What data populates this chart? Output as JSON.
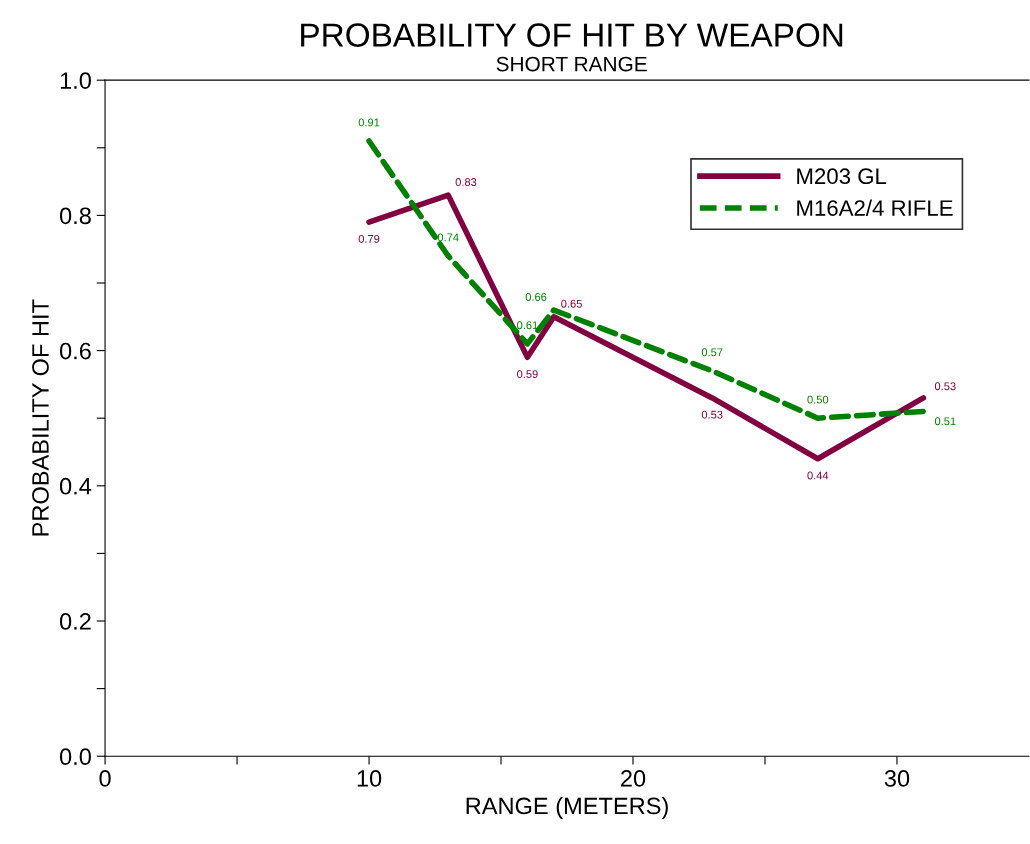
{
  "chart_data": {
    "type": "line",
    "title": "PROBABILITY OF HIT BY WEAPON",
    "subtitle": "SHORT RANGE",
    "xlabel": "RANGE (METERS)",
    "ylabel": "PROBABILITY OF HIT",
    "x": [
      10,
      13,
      16,
      17,
      23,
      27,
      31
    ],
    "series": [
      {
        "name": "M203 GL",
        "color": "#800040",
        "line_style": "solid",
        "values": [
          0.79,
          0.83,
          0.59,
          0.65,
          0.53,
          0.44,
          0.53
        ],
        "value_labels": [
          "0.79",
          "0.83",
          "0.59",
          "0.65",
          "0.53",
          "0.44",
          "0.53"
        ]
      },
      {
        "name": "M16A2/4 RIFLE",
        "color": "#008000",
        "line_style": "dashed",
        "values": [
          0.91,
          0.74,
          0.61,
          0.66,
          0.57,
          0.5,
          0.51
        ],
        "value_labels": [
          "0.91",
          "0.74",
          "0.61",
          "0.66",
          "0.57",
          "0.50",
          "0.51"
        ]
      }
    ],
    "xlim": [
      0,
      35
    ],
    "xticks": [
      0,
      {
        "value": 5,
        "label": null
      },
      10,
      {
        "value": 15,
        "label": null
      },
      20,
      {
        "value": 25,
        "label": null
      },
      30
    ],
    "ylim": [
      0,
      1.0
    ],
    "yticks": [
      {
        "value": 0,
        "label": "0.0"
      },
      {
        "value": 0.1,
        "label": null
      },
      0.2,
      {
        "value": 0.3,
        "label": null
      },
      0.4,
      {
        "value": 0.5,
        "label": null
      },
      0.6,
      {
        "value": 0.7,
        "label": null
      },
      0.8,
      {
        "value": 0.9,
        "label": null
      },
      {
        "value": 1.0,
        "label": "1.0"
      }
    ],
    "data_labels": true,
    "grid": false,
    "legend": "top right",
    "marker": "none"
  }
}
